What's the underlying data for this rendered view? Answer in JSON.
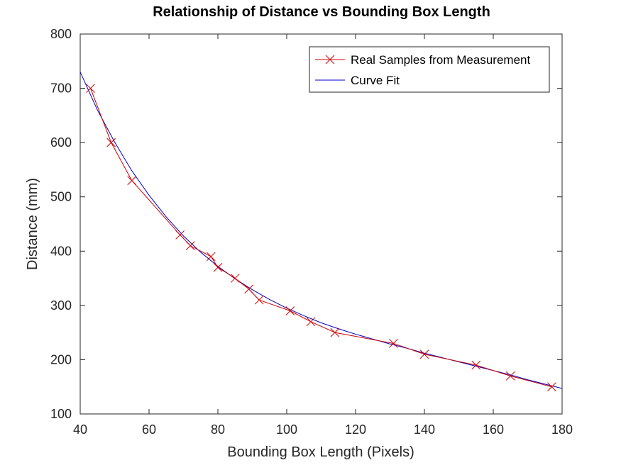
{
  "chart_data": {
    "type": "line",
    "title": "Relationship of Distance vs Bounding Box Length",
    "xlabel": "Bounding Box Length (Pixels)",
    "ylabel": "Distance (mm)",
    "xlim": [
      40,
      180
    ],
    "ylim": [
      100,
      800
    ],
    "xticks": [
      40,
      60,
      80,
      100,
      120,
      140,
      160,
      180
    ],
    "yticks": [
      100,
      200,
      300,
      400,
      500,
      600,
      700,
      800
    ],
    "grid": false,
    "legend_position": "top-right",
    "series": [
      {
        "name": "Real Samples from Measurement",
        "color": "#cc0000",
        "marker": "x",
        "x": [
          43,
          49,
          55,
          69,
          72,
          78,
          80,
          85,
          89,
          92,
          101,
          107,
          114,
          131,
          140,
          155,
          165,
          177
        ],
        "y": [
          700,
          600,
          530,
          430,
          410,
          390,
          370,
          350,
          330,
          310,
          290,
          270,
          250,
          230,
          210,
          190,
          170,
          150
        ]
      },
      {
        "name": "Curve Fit",
        "color": "#0000cc",
        "marker": "none",
        "x": [
          40,
          45,
          50,
          55,
          60,
          65,
          70,
          75,
          80,
          85,
          90,
          95,
          100,
          105,
          110,
          115,
          120,
          125,
          130,
          135,
          140,
          145,
          150,
          155,
          160,
          165,
          170,
          175,
          180
        ],
        "y": [
          730,
          660,
          601,
          548,
          503,
          463,
          428,
          398,
          372,
          349,
          329,
          311,
          295,
          281,
          268,
          257,
          247,
          238,
          229,
          221,
          212,
          204,
          196,
          188,
          180,
          172,
          163,
          155,
          147
        ]
      }
    ]
  }
}
